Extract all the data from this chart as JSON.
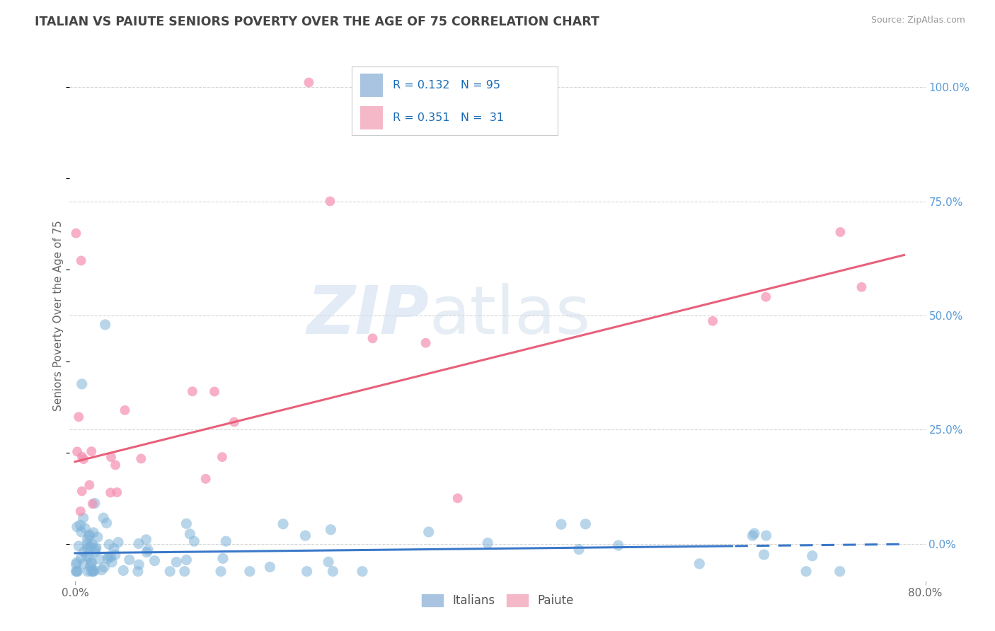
{
  "title": "ITALIAN VS PAIUTE SENIORS POVERTY OVER THE AGE OF 75 CORRELATION CHART",
  "source": "Source: ZipAtlas.com",
  "ylabel": "Seniors Poverty Over the Age of 75",
  "xlim": [
    -0.005,
    0.8
  ],
  "ylim": [
    -0.08,
    1.08
  ],
  "xtick_labels": [
    "0.0%",
    "80.0%"
  ],
  "xtick_positions": [
    0.0,
    0.8
  ],
  "ytick_right_labels": [
    "0.0%",
    "25.0%",
    "50.0%",
    "75.0%",
    "100.0%"
  ],
  "ytick_right_positions": [
    0.0,
    0.25,
    0.5,
    0.75,
    1.0
  ],
  "legend_italian_color": "#a8c4e0",
  "legend_paiute_color": "#f4b8c8",
  "italian_dot_color": "#7fb3d9",
  "paiute_dot_color": "#f48fb1",
  "italian_line_color": "#3a78c9",
  "paiute_line_color": "#e8607a",
  "R_italian": 0.132,
  "N_italian": 95,
  "R_paiute": 0.351,
  "N_paiute": 31,
  "watermark_text": "ZIPatlas",
  "bg_color": "#ffffff",
  "grid_color": "#cccccc",
  "title_color": "#444444",
  "it_intercept": -0.02,
  "it_slope": 0.025,
  "pa_intercept": 0.18,
  "pa_slope": 0.58
}
